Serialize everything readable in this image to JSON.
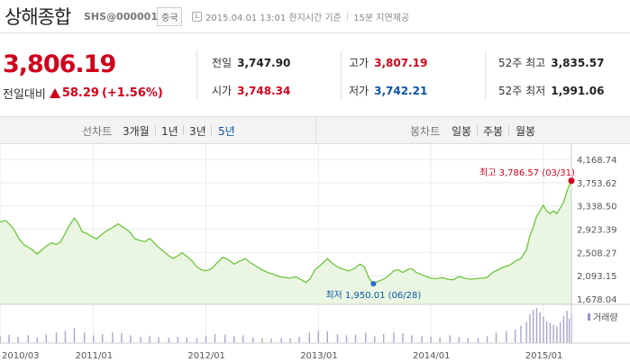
{
  "header": {
    "title": "상해종합",
    "code": "SHS@000001",
    "market": "중국",
    "datetime": "2015.04.01 13:01 현지시간 기준",
    "delay": "15분 지연제공"
  },
  "quote": {
    "price": "3,806.19",
    "change_label": "전일대비",
    "change": "58.29",
    "change_pct": "(+1.56%)",
    "prev_close_label": "전일",
    "prev_close": "3,747.90",
    "open_label": "시가",
    "open": "3,748.34",
    "high_label": "고가",
    "high": "3,807.19",
    "low_label": "저가",
    "low": "3,742.21",
    "high52_label": "52주 최고",
    "high52": "3,835.57",
    "low52_label": "52주 최저",
    "low52": "1,991.06"
  },
  "tabs": {
    "line_label": "선차트",
    "line_options": [
      "3개월",
      "1년",
      "3년",
      "5년"
    ],
    "line_active": "5년",
    "candle_label": "봉차트",
    "candle_options": [
      "일봉",
      "주봉",
      "월봉"
    ]
  },
  "colors": {
    "up": "#d0021b",
    "down": "#0a54a6",
    "line": "#6ec63c",
    "fill": "#eaf6e2"
  },
  "chart_data": {
    "type": "area",
    "yticks": [
      "4,168.74",
      "3,753.62",
      "3,338.50",
      "2,923.39",
      "2,508.27",
      "2,093.15",
      "1,678.04"
    ],
    "ylim": [
      1678.04,
      4168.74
    ],
    "xticks": [
      "2010/03",
      "2011/01",
      "2012/01",
      "2013/01",
      "2014/01",
      "2015/01"
    ],
    "xtick_values": [
      2010.17,
      2011.0,
      2012.0,
      2013.0,
      2014.0,
      2015.0
    ],
    "xlim": [
      2010.17,
      2015.25
    ],
    "high_annotation": "최고 3,786.57 (03/31)",
    "low_annotation": "최저 1,950.01 (06/28)",
    "high_point": {
      "x": 2015.25,
      "y": 3786.57
    },
    "low_point": {
      "x": 2013.49,
      "y": 1950.01
    },
    "volume_label": "거래량",
    "series": [
      {
        "values": [
          [
            2010.17,
            3050
          ],
          [
            2010.22,
            3080
          ],
          [
            2010.26,
            3000
          ],
          [
            2010.3,
            2900
          ],
          [
            2010.34,
            2750
          ],
          [
            2010.38,
            2650
          ],
          [
            2010.42,
            2600
          ],
          [
            2010.46,
            2550
          ],
          [
            2010.5,
            2480
          ],
          [
            2010.54,
            2550
          ],
          [
            2010.58,
            2620
          ],
          [
            2010.63,
            2680
          ],
          [
            2010.67,
            2650
          ],
          [
            2010.71,
            2700
          ],
          [
            2010.75,
            2850
          ],
          [
            2010.79,
            3000
          ],
          [
            2010.83,
            3120
          ],
          [
            2010.86,
            3050
          ],
          [
            2010.9,
            2880
          ],
          [
            2010.94,
            2850
          ],
          [
            2010.98,
            2800
          ],
          [
            2011.03,
            2750
          ],
          [
            2011.07,
            2820
          ],
          [
            2011.12,
            2900
          ],
          [
            2011.17,
            2950
          ],
          [
            2011.22,
            3020
          ],
          [
            2011.27,
            2950
          ],
          [
            2011.32,
            2880
          ],
          [
            2011.37,
            2750
          ],
          [
            2011.42,
            2720
          ],
          [
            2011.46,
            2700
          ],
          [
            2011.5,
            2760
          ],
          [
            2011.54,
            2680
          ],
          [
            2011.58,
            2600
          ],
          [
            2011.63,
            2520
          ],
          [
            2011.67,
            2450
          ],
          [
            2011.71,
            2400
          ],
          [
            2011.75,
            2450
          ],
          [
            2011.79,
            2500
          ],
          [
            2011.83,
            2440
          ],
          [
            2011.88,
            2350
          ],
          [
            2011.92,
            2250
          ],
          [
            2011.96,
            2200
          ],
          [
            2012.0,
            2180
          ],
          [
            2012.05,
            2220
          ],
          [
            2012.1,
            2320
          ],
          [
            2012.15,
            2420
          ],
          [
            2012.2,
            2380
          ],
          [
            2012.25,
            2300
          ],
          [
            2012.3,
            2350
          ],
          [
            2012.35,
            2400
          ],
          [
            2012.4,
            2320
          ],
          [
            2012.45,
            2260
          ],
          [
            2012.5,
            2200
          ],
          [
            2012.55,
            2150
          ],
          [
            2012.6,
            2120
          ],
          [
            2012.65,
            2080
          ],
          [
            2012.7,
            2060
          ],
          [
            2012.75,
            2050
          ],
          [
            2012.8,
            2070
          ],
          [
            2012.85,
            2020
          ],
          [
            2012.89,
            1970
          ],
          [
            2012.93,
            2050
          ],
          [
            2012.97,
            2200
          ],
          [
            2013.02,
            2280
          ],
          [
            2013.08,
            2400
          ],
          [
            2013.12,
            2320
          ],
          [
            2013.17,
            2250
          ],
          [
            2013.22,
            2210
          ],
          [
            2013.27,
            2180
          ],
          [
            2013.32,
            2220
          ],
          [
            2013.37,
            2300
          ],
          [
            2013.41,
            2250
          ],
          [
            2013.45,
            2050
          ],
          [
            2013.49,
            1950
          ],
          [
            2013.54,
            2000
          ],
          [
            2013.58,
            2030
          ],
          [
            2013.63,
            2100
          ],
          [
            2013.67,
            2180
          ],
          [
            2013.71,
            2200
          ],
          [
            2013.75,
            2150
          ],
          [
            2013.79,
            2200
          ],
          [
            2013.83,
            2220
          ],
          [
            2013.87,
            2150
          ],
          [
            2013.92,
            2110
          ],
          [
            2013.96,
            2080
          ],
          [
            2014.0,
            2050
          ],
          [
            2014.05,
            2040
          ],
          [
            2014.1,
            2060
          ],
          [
            2014.15,
            2030
          ],
          [
            2014.2,
            2020
          ],
          [
            2014.25,
            2080
          ],
          [
            2014.3,
            2050
          ],
          [
            2014.35,
            2030
          ],
          [
            2014.4,
            2040
          ],
          [
            2014.45,
            2050
          ],
          [
            2014.5,
            2060
          ],
          [
            2014.55,
            2150
          ],
          [
            2014.6,
            2200
          ],
          [
            2014.65,
            2250
          ],
          [
            2014.7,
            2280
          ],
          [
            2014.75,
            2350
          ],
          [
            2014.8,
            2400
          ],
          [
            2014.85,
            2550
          ],
          [
            2014.88,
            2800
          ],
          [
            2014.91,
            2950
          ],
          [
            2014.94,
            3150
          ],
          [
            2014.97,
            3250
          ],
          [
            2015.0,
            3350
          ],
          [
            2015.03,
            3250
          ],
          [
            2015.06,
            3200
          ],
          [
            2015.09,
            3250
          ],
          [
            2015.12,
            3200
          ],
          [
            2015.15,
            3300
          ],
          [
            2015.18,
            3400
          ],
          [
            2015.21,
            3600
          ],
          [
            2015.23,
            3700
          ],
          [
            2015.25,
            3786.57
          ]
        ]
      }
    ],
    "volume": [
      [
        2010.17,
        0.2
      ],
      [
        2010.25,
        0.24
      ],
      [
        2010.33,
        0.18
      ],
      [
        2010.42,
        0.22
      ],
      [
        2010.5,
        0.16
      ],
      [
        2010.58,
        0.24
      ],
      [
        2010.67,
        0.3
      ],
      [
        2010.75,
        0.35
      ],
      [
        2010.83,
        0.42
      ],
      [
        2010.92,
        0.3
      ],
      [
        2011.0,
        0.22
      ],
      [
        2011.08,
        0.26
      ],
      [
        2011.17,
        0.3
      ],
      [
        2011.25,
        0.28
      ],
      [
        2011.33,
        0.22
      ],
      [
        2011.42,
        0.18
      ],
      [
        2011.5,
        0.2
      ],
      [
        2011.58,
        0.17
      ],
      [
        2011.67,
        0.15
      ],
      [
        2011.75,
        0.18
      ],
      [
        2011.83,
        0.16
      ],
      [
        2011.92,
        0.14
      ],
      [
        2012.0,
        0.2
      ],
      [
        2012.08,
        0.26
      ],
      [
        2012.17,
        0.24
      ],
      [
        2012.25,
        0.2
      ],
      [
        2012.33,
        0.22
      ],
      [
        2012.42,
        0.16
      ],
      [
        2012.5,
        0.14
      ],
      [
        2012.58,
        0.13
      ],
      [
        2012.67,
        0.15
      ],
      [
        2012.75,
        0.14
      ],
      [
        2012.83,
        0.18
      ],
      [
        2012.92,
        0.3
      ],
      [
        2013.0,
        0.36
      ],
      [
        2013.08,
        0.34
      ],
      [
        2013.17,
        0.26
      ],
      [
        2013.25,
        0.22
      ],
      [
        2013.33,
        0.24
      ],
      [
        2013.42,
        0.3
      ],
      [
        2013.5,
        0.2
      ],
      [
        2013.58,
        0.26
      ],
      [
        2013.67,
        0.3
      ],
      [
        2013.75,
        0.28
      ],
      [
        2013.83,
        0.22
      ],
      [
        2013.92,
        0.2
      ],
      [
        2014.0,
        0.18
      ],
      [
        2014.08,
        0.16
      ],
      [
        2014.17,
        0.22
      ],
      [
        2014.25,
        0.18
      ],
      [
        2014.33,
        0.15
      ],
      [
        2014.42,
        0.14
      ],
      [
        2014.5,
        0.2
      ],
      [
        2014.58,
        0.3
      ],
      [
        2014.67,
        0.34
      ],
      [
        2014.75,
        0.38
      ],
      [
        2014.8,
        0.5
      ],
      [
        2014.85,
        0.6
      ],
      [
        2014.88,
        0.82
      ],
      [
        2014.91,
        0.95
      ],
      [
        2014.94,
        1.0
      ],
      [
        2014.97,
        0.88
      ],
      [
        2015.0,
        0.75
      ],
      [
        2015.03,
        0.62
      ],
      [
        2015.06,
        0.58
      ],
      [
        2015.09,
        0.52
      ],
      [
        2015.12,
        0.48
      ],
      [
        2015.15,
        0.6
      ],
      [
        2015.18,
        0.78
      ],
      [
        2015.21,
        0.92
      ],
      [
        2015.23,
        0.7
      ],
      [
        2015.25,
        0.85
      ]
    ]
  }
}
